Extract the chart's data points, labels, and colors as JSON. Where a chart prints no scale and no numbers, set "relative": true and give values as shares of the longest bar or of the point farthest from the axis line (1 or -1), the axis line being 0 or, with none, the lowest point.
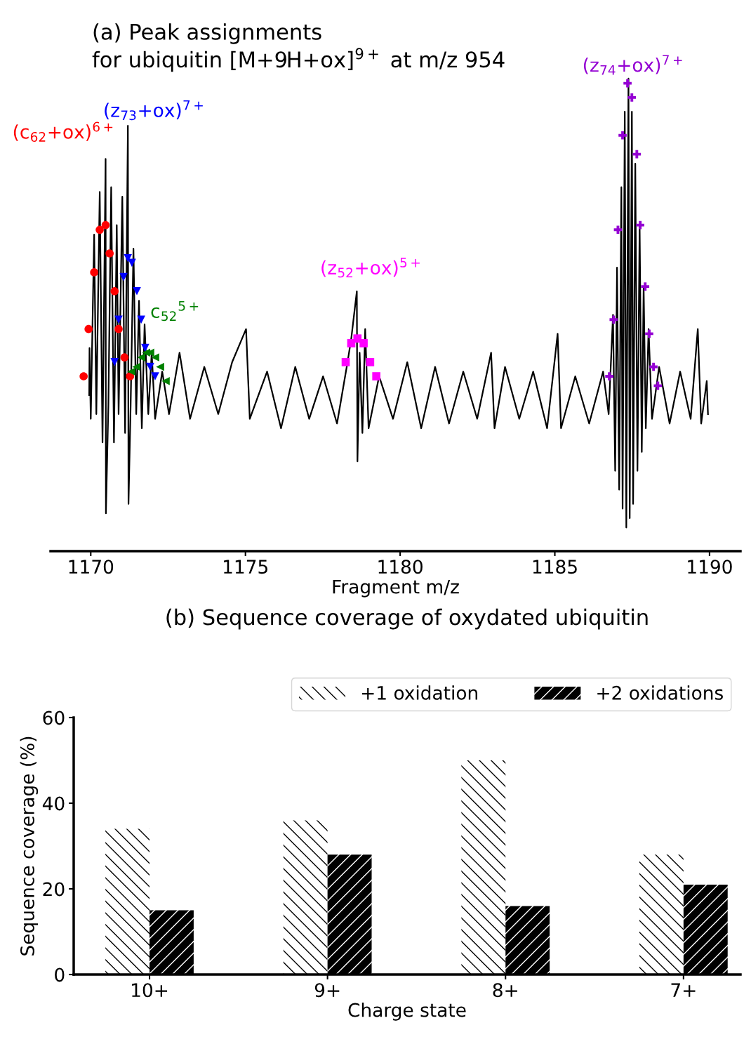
{
  "chart_data": [
    {
      "type": "line",
      "title": "(a) Peak assignments\nfor ubiquitin [M+9H+ox]$^{9+}$ at m/z 954",
      "xlabel": "Fragment m/z",
      "relative": true,
      "xlim": [
        1168.7,
        1191.0
      ],
      "xticks": [
        1170,
        1175,
        1180,
        1185,
        1190
      ],
      "tick_labels": "x",
      "grid": false,
      "series": [
        {
          "type": "line",
          "color": "#000000",
          "marker": "none",
          "x": [
            1169.95,
            1169.96,
            1170.0,
            1170.11,
            1170.18,
            1170.29,
            1170.38,
            1170.48,
            1170.49,
            1170.57,
            1170.66,
            1170.75,
            1170.84,
            1170.9,
            1171.02,
            1171.11,
            1171.2,
            1171.22,
            1171.29,
            1171.38,
            1171.47,
            1171.56,
            1171.65,
            1171.74,
            1171.86,
            1171.97,
            1172.08,
            1172.31,
            1172.53,
            1172.87,
            1173.21,
            1173.67,
            1174.12,
            1174.57,
            1175.02,
            1175.14,
            1175.7,
            1176.15,
            1176.61,
            1177.06,
            1177.51,
            1177.96,
            1178.3,
            1178.42,
            1178.51,
            1178.6,
            1178.62,
            1178.69,
            1178.78,
            1178.87,
            1178.98,
            1179.32,
            1179.77,
            1180.23,
            1180.68,
            1181.13,
            1181.58,
            1182.04,
            1182.49,
            1182.94,
            1183.05,
            1183.39,
            1183.85,
            1184.3,
            1184.75,
            1185.09,
            1185.2,
            1185.66,
            1186.11,
            1186.56,
            1186.74,
            1186.88,
            1186.95,
            1187.01,
            1187.08,
            1187.15,
            1187.19,
            1187.26,
            1187.31,
            1187.38,
            1187.42,
            1187.49,
            1187.53,
            1187.6,
            1187.67,
            1187.74,
            1187.81,
            1187.87,
            1187.94,
            1188.03,
            1188.14,
            1188.37,
            1188.71,
            1189.05,
            1189.39,
            1189.62,
            1189.73,
            1189.91,
            1189.95
          ],
          "values": [
            0.33,
            0.43,
            0.28,
            0.67,
            0.29,
            0.76,
            0.23,
            0.83,
            0.08,
            0.31,
            0.77,
            0.23,
            0.69,
            0.29,
            0.75,
            0.25,
            0.9,
            0.1,
            0.31,
            0.64,
            0.29,
            0.53,
            0.26,
            0.48,
            0.29,
            0.42,
            0.28,
            0.38,
            0.29,
            0.42,
            0.28,
            0.39,
            0.29,
            0.4,
            0.47,
            0.28,
            0.38,
            0.26,
            0.39,
            0.28,
            0.37,
            0.27,
            0.4,
            0.45,
            0.5,
            0.55,
            0.19,
            0.42,
            0.25,
            0.47,
            0.26,
            0.37,
            0.28,
            0.4,
            0.26,
            0.39,
            0.27,
            0.38,
            0.28,
            0.42,
            0.26,
            0.39,
            0.28,
            0.38,
            0.26,
            0.46,
            0.26,
            0.37,
            0.27,
            0.38,
            0.29,
            0.5,
            0.17,
            0.6,
            0.13,
            0.77,
            0.09,
            0.93,
            0.05,
            1.0,
            0.07,
            0.93,
            0.1,
            0.82,
            0.17,
            0.69,
            0.21,
            0.56,
            0.26,
            0.47,
            0.28,
            0.39,
            0.27,
            0.38,
            0.28,
            0.47,
            0.27,
            0.36,
            0.29
          ]
        },
        {
          "type": "scatter",
          "name": "(c$_{62}$+ox)$^{6+}$",
          "color": "#ff0000",
          "marker": "circle",
          "x": [
            1169.77,
            1169.93,
            1170.11,
            1170.29,
            1170.48,
            1170.61,
            1170.77,
            1170.9,
            1171.09,
            1171.27
          ],
          "values": [
            0.37,
            0.47,
            0.59,
            0.68,
            0.69,
            0.63,
            0.55,
            0.47,
            0.41,
            0.37
          ]
        },
        {
          "type": "scatter",
          "name": "(z$_{73}$+ox)$^{7+}$",
          "color": "#0000ff",
          "marker": "triangle",
          "x": [
            1170.77,
            1170.9,
            1171.06,
            1171.2,
            1171.33,
            1171.49,
            1171.63,
            1171.76,
            1171.92,
            1172.08
          ],
          "values": [
            0.4,
            0.49,
            0.58,
            0.62,
            0.61,
            0.55,
            0.49,
            0.43,
            0.39,
            0.37
          ]
        },
        {
          "type": "scatter",
          "name": "c$_{52}$$^{5+}$",
          "color": "#008000",
          "marker": "triangle_left",
          "x": [
            1171.31,
            1171.47,
            1171.63,
            1171.79,
            1171.92,
            1172.08,
            1172.24,
            1172.42
          ],
          "values": [
            0.38,
            0.39,
            0.41,
            0.42,
            0.42,
            0.41,
            0.39,
            0.36
          ]
        },
        {
          "type": "scatter",
          "name": "(z$_{52}$+ox)$^{5+}$",
          "color": "#ff00ff",
          "marker": "square",
          "x": [
            1178.24,
            1178.42,
            1178.62,
            1178.82,
            1179.03,
            1179.23
          ],
          "values": [
            0.4,
            0.44,
            0.45,
            0.44,
            0.4,
            0.37
          ]
        },
        {
          "type": "scatter",
          "name": "(z$_{74}$+ox)$^{7+}$",
          "color": "#9400d3",
          "marker": "plus",
          "x": [
            1186.76,
            1186.9,
            1187.04,
            1187.19,
            1187.35,
            1187.49,
            1187.65,
            1187.76,
            1187.92,
            1188.05,
            1188.19,
            1188.33
          ],
          "values": [
            0.37,
            0.49,
            0.68,
            0.88,
            0.99,
            0.96,
            0.84,
            0.69,
            0.56,
            0.46,
            0.39,
            0.35
          ]
        }
      ]
    },
    {
      "type": "bar",
      "title": "(b) Sequence coverage of oxydated ubiquitin",
      "xlabel": "Charge state",
      "ylabel": "Sequence coverage (%)",
      "categories": [
        "10+",
        "9+",
        "8+",
        "7+"
      ],
      "ylim": [
        0,
        60
      ],
      "yticks": [
        0,
        20,
        40,
        60
      ],
      "grid": false,
      "legend": "top right",
      "series": [
        {
          "name": "+1 oxidation",
          "color": "#ffffff",
          "values": [
            34,
            36,
            50,
            28
          ]
        },
        {
          "name": "+2 oxidations",
          "color": "#000000",
          "values": [
            15,
            28,
            16,
            21
          ]
        }
      ]
    }
  ]
}
